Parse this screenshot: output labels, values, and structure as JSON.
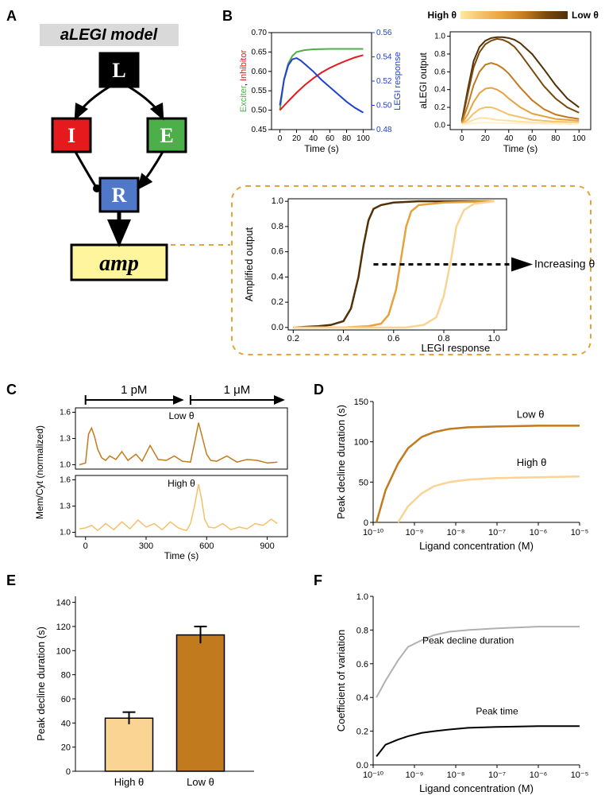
{
  "labels": {
    "A": "A",
    "B": "B",
    "C": "C",
    "D": "D",
    "E": "E",
    "F": "F"
  },
  "panelA": {
    "title": "aLEGI model",
    "title_bg": "#d9d9d9",
    "title_color": "#000000",
    "title_fontsize": 20,
    "title_style": "italic bold",
    "boxes": {
      "L": {
        "label": "L",
        "bg": "#000000",
        "fg": "#ffffff"
      },
      "I": {
        "label": "I",
        "bg": "#e41a1c",
        "fg": "#ffffff"
      },
      "E": {
        "label": "E",
        "bg": "#4daf4a",
        "fg": "#ffffff"
      },
      "R": {
        "label": "R",
        "bg": "#5078c8",
        "fg": "#ffffff"
      },
      "amp": {
        "label": "amp",
        "bg": "#fff59d",
        "fg": "#000000"
      }
    },
    "box_stroke": "#000000",
    "box_stroke_width": 3,
    "box_fontsize": 22
  },
  "panelB": {
    "theta_gradient": {
      "label_high": "High θ",
      "label_low": "Low θ",
      "colors": [
        "#ffe8a0",
        "#f5c069",
        "#e6a23c",
        "#c27a1e",
        "#7a4a0c",
        "#523008"
      ]
    },
    "left": {
      "xlabel": "Time (s)",
      "ylabel_left": "Exciter, Inhibitor",
      "ylabel_left_colors": {
        "exciter": "#4daf4a",
        "inhibitor": "#e41a1c"
      },
      "ylabel_right": "LEGI response",
      "ylabel_right_color": "#2040d0",
      "xlim": [
        -10,
        110
      ],
      "xticks": [
        0,
        20,
        40,
        60,
        80,
        100
      ],
      "ylim_left": [
        0.45,
        0.7
      ],
      "yticks_left": [
        0.45,
        0.5,
        0.55,
        0.6,
        0.65,
        0.7
      ],
      "ylim_right": [
        0.48,
        0.56
      ],
      "yticks_right": [
        0.48,
        0.5,
        0.52,
        0.54,
        0.56
      ],
      "series": {
        "exciter": {
          "color": "#4daf4a",
          "width": 2,
          "x": [
            0,
            5,
            10,
            15,
            20,
            30,
            40,
            60,
            100
          ],
          "y": [
            0.5,
            0.58,
            0.62,
            0.64,
            0.65,
            0.655,
            0.657,
            0.658,
            0.658
          ]
        },
        "inhibitor": {
          "color": "#e41a1c",
          "width": 2,
          "x": [
            0,
            10,
            20,
            30,
            40,
            50,
            60,
            70,
            80,
            90,
            100
          ],
          "y": [
            0.5,
            0.523,
            0.545,
            0.565,
            0.582,
            0.597,
            0.609,
            0.619,
            0.628,
            0.636,
            0.642
          ]
        },
        "legi": {
          "color": "#2040d0",
          "width": 2,
          "axis": "right",
          "x": [
            0,
            5,
            10,
            15,
            20,
            25,
            30,
            40,
            50,
            60,
            70,
            80,
            90,
            100
          ],
          "y": [
            0.5,
            0.521,
            0.533,
            0.538,
            0.539,
            0.537,
            0.534,
            0.528,
            0.521,
            0.515,
            0.509,
            0.503,
            0.498,
            0.494
          ]
        }
      }
    },
    "right": {
      "xlabel": "Time (s)",
      "ylabel": "aLEGI output",
      "xlim": [
        -10,
        110
      ],
      "xticks": [
        0,
        20,
        40,
        60,
        80,
        100
      ],
      "ylim": [
        -0.05,
        1.05
      ],
      "yticks": [
        0,
        0.2,
        0.4,
        0.6,
        0.8,
        1.0
      ],
      "series_colors": [
        "#523008",
        "#7a4a0c",
        "#c27a1e",
        "#e6a23c",
        "#f5c069",
        "#ffe0a0",
        "#fff0d0"
      ],
      "series": [
        {
          "x": [
            0,
            5,
            10,
            15,
            20,
            25,
            30,
            35,
            40,
            45,
            50,
            60,
            70,
            80,
            90,
            100
          ],
          "y": [
            0.05,
            0.4,
            0.72,
            0.88,
            0.95,
            0.98,
            0.99,
            0.99,
            0.98,
            0.96,
            0.92,
            0.8,
            0.63,
            0.45,
            0.3,
            0.2
          ]
        },
        {
          "x": [
            0,
            5,
            10,
            15,
            20,
            25,
            30,
            35,
            40,
            45,
            50,
            60,
            70,
            80,
            90,
            100
          ],
          "y": [
            0.04,
            0.35,
            0.65,
            0.82,
            0.91,
            0.95,
            0.97,
            0.96,
            0.93,
            0.88,
            0.8,
            0.62,
            0.44,
            0.3,
            0.2,
            0.14
          ]
        },
        {
          "x": [
            0,
            5,
            10,
            15,
            20,
            25,
            30,
            35,
            40,
            45,
            50,
            60,
            70,
            80,
            90,
            100
          ],
          "y": [
            0.03,
            0.22,
            0.45,
            0.6,
            0.68,
            0.7,
            0.68,
            0.64,
            0.58,
            0.5,
            0.42,
            0.28,
            0.18,
            0.12,
            0.09,
            0.07
          ]
        },
        {
          "x": [
            0,
            5,
            10,
            15,
            20,
            25,
            30,
            35,
            40,
            50,
            60,
            80,
            100
          ],
          "y": [
            0.02,
            0.12,
            0.26,
            0.36,
            0.41,
            0.42,
            0.4,
            0.36,
            0.3,
            0.2,
            0.13,
            0.07,
            0.05
          ]
        },
        {
          "x": [
            0,
            5,
            10,
            15,
            20,
            25,
            30,
            40,
            60,
            80,
            100
          ],
          "y": [
            0.01,
            0.06,
            0.13,
            0.18,
            0.2,
            0.2,
            0.18,
            0.12,
            0.06,
            0.04,
            0.03
          ]
        },
        {
          "x": [
            0,
            5,
            10,
            15,
            20,
            30,
            60,
            100
          ],
          "y": [
            0.01,
            0.03,
            0.06,
            0.08,
            0.08,
            0.06,
            0.03,
            0.02
          ]
        },
        {
          "x": [
            0,
            10,
            20,
            40,
            100
          ],
          "y": [
            0.005,
            0.02,
            0.03,
            0.02,
            0.01
          ]
        }
      ]
    },
    "inset": {
      "xlabel": "LEGI response",
      "ylabel": "Amplified output",
      "annot": "Increasing θ",
      "xlim": [
        0.18,
        1.05
      ],
      "xticks": [
        0.2,
        0.4,
        0.6,
        0.8,
        1.0
      ],
      "ylim": [
        -0.02,
        1.02
      ],
      "yticks": [
        0,
        0.2,
        0.4,
        0.6,
        0.8,
        1.0
      ],
      "curves": [
        {
          "color": "#523008",
          "x": [
            0.2,
            0.3,
            0.35,
            0.4,
            0.43,
            0.46,
            0.48,
            0.5,
            0.52,
            0.55,
            0.6,
            0.7,
            0.8,
            1.0
          ],
          "y": [
            0.0,
            0.01,
            0.02,
            0.05,
            0.15,
            0.4,
            0.65,
            0.85,
            0.94,
            0.97,
            0.99,
            1.0,
            1.0,
            1.0
          ]
        },
        {
          "color": "#e6a23c",
          "x": [
            0.2,
            0.4,
            0.5,
            0.55,
            0.58,
            0.61,
            0.63,
            0.65,
            0.67,
            0.7,
            0.8,
            1.0
          ],
          "y": [
            0.0,
            0.0,
            0.01,
            0.03,
            0.1,
            0.3,
            0.55,
            0.8,
            0.92,
            0.97,
            0.99,
            1.0
          ]
        },
        {
          "color": "#f9d493",
          "x": [
            0.2,
            0.5,
            0.65,
            0.72,
            0.77,
            0.8,
            0.83,
            0.85,
            0.88,
            0.92,
            1.0
          ],
          "y": [
            0.0,
            0.0,
            0.0,
            0.02,
            0.08,
            0.25,
            0.55,
            0.8,
            0.93,
            0.98,
            1.0
          ]
        }
      ],
      "box_border_color": "#e6a23c",
      "box_border_dash": "6,6"
    }
  },
  "panelC": {
    "stim_labels": [
      "1 pM",
      "1 μM"
    ],
    "xlabel": "Time (s)",
    "ylabel": "Mem/Cyt (normalized)",
    "xlim": [
      -50,
      1000
    ],
    "xticks": [
      0,
      300,
      600,
      900
    ],
    "ylim": [
      0.95,
      1.65
    ],
    "yticks": [
      1.0,
      1.3,
      1.6
    ],
    "top": {
      "label": "Low θ",
      "color": "#c27a1e",
      "x": [
        -30,
        0,
        15,
        30,
        45,
        60,
        80,
        100,
        120,
        150,
        180,
        210,
        250,
        280,
        320,
        360,
        400,
        440,
        480,
        520,
        540,
        560,
        580,
        600,
        620,
        650,
        700,
        750,
        800,
        850,
        900,
        950
      ],
      "y": [
        1.0,
        1.02,
        1.35,
        1.42,
        1.32,
        1.18,
        1.08,
        1.05,
        1.1,
        1.06,
        1.15,
        1.05,
        1.12,
        1.04,
        1.22,
        1.06,
        1.05,
        1.1,
        1.04,
        1.03,
        1.25,
        1.48,
        1.3,
        1.12,
        1.05,
        1.04,
        1.1,
        1.03,
        1.06,
        1.05,
        1.02,
        1.03
      ]
    },
    "bottom": {
      "label": "High θ",
      "color": "#f5c069",
      "x": [
        -30,
        0,
        30,
        60,
        100,
        140,
        180,
        220,
        260,
        300,
        340,
        380,
        420,
        460,
        500,
        520,
        540,
        560,
        575,
        590,
        610,
        640,
        680,
        720,
        760,
        800,
        840,
        880,
        920,
        950
      ],
      "y": [
        1.04,
        1.05,
        1.08,
        1.02,
        1.1,
        1.03,
        1.12,
        1.04,
        1.14,
        1.06,
        1.1,
        1.03,
        1.12,
        1.05,
        1.02,
        1.1,
        1.3,
        1.55,
        1.38,
        1.15,
        1.06,
        1.05,
        1.1,
        1.03,
        1.06,
        1.04,
        1.1,
        1.08,
        1.15,
        1.1
      ]
    }
  },
  "panelD": {
    "xlabel": "Ligand concentration (M)",
    "ylabel": "Peak decline duration (s)",
    "xlog": true,
    "xlim": [
      1e-10,
      1e-05
    ],
    "xticks": [
      1e-10,
      1e-09,
      1e-08,
      1e-07,
      1e-06,
      1e-05
    ],
    "ylim": [
      0,
      150
    ],
    "yticks": [
      0,
      50,
      100,
      150
    ],
    "low": {
      "label": "Low θ",
      "color": "#c27a1e",
      "x": [
        1.2e-10,
        2e-10,
        4e-10,
        7e-10,
        1.5e-09,
        3e-09,
        7e-09,
        2e-08,
        1e-07,
        1e-06,
        1e-05
      ],
      "y": [
        0,
        40,
        73,
        92,
        106,
        112,
        116,
        118,
        119,
        120,
        120
      ]
    },
    "high": {
      "label": "High θ",
      "color": "#f9d493",
      "x": [
        4e-10,
        7e-10,
        1.5e-09,
        3e-09,
        7e-09,
        2e-08,
        1e-07,
        1e-06,
        1e-05
      ],
      "y": [
        0,
        20,
        36,
        45,
        50,
        53,
        55,
        56,
        57
      ]
    }
  },
  "panelE": {
    "xlabel_cats": [
      "High θ",
      "Low θ"
    ],
    "ylabel": "Peak decline duration (s)",
    "ylim": [
      0,
      145
    ],
    "yticks": [
      0,
      20,
      40,
      60,
      80,
      100,
      120,
      140
    ],
    "bars": [
      {
        "value": 44,
        "err": 5,
        "color": "#f9d493"
      },
      {
        "value": 113,
        "err": 7,
        "color": "#c27a1e"
      }
    ]
  },
  "panelF": {
    "xlabel": "Ligand concentration (M)",
    "ylabel": "Coefficient of variation",
    "xlog": true,
    "xlim": [
      1e-10,
      1e-05
    ],
    "xticks": [
      1e-10,
      1e-09,
      1e-08,
      1e-07,
      1e-06,
      1e-05
    ],
    "ylim": [
      0,
      1.0
    ],
    "yticks": [
      0,
      0.2,
      0.4,
      0.6,
      0.8,
      1.0
    ],
    "pdd": {
      "label": "Peak decline duration",
      "color": "#b0b0b0",
      "width": 2,
      "x": [
        1.2e-10,
        2e-10,
        4e-10,
        7e-10,
        1.5e-09,
        3e-09,
        7e-09,
        2e-08,
        1e-07,
        1e-06,
        1e-05
      ],
      "y": [
        0.4,
        0.5,
        0.62,
        0.7,
        0.74,
        0.77,
        0.79,
        0.8,
        0.81,
        0.82,
        0.82
      ]
    },
    "pt": {
      "label": "Peak time",
      "color": "#000000",
      "width": 2,
      "x": [
        1.2e-10,
        2e-10,
        4e-10,
        7e-10,
        1.5e-09,
        3e-09,
        7e-09,
        2e-08,
        1e-07,
        1e-06,
        1e-05
      ],
      "y": [
        0.05,
        0.12,
        0.15,
        0.17,
        0.19,
        0.2,
        0.21,
        0.22,
        0.225,
        0.23,
        0.23
      ]
    }
  }
}
